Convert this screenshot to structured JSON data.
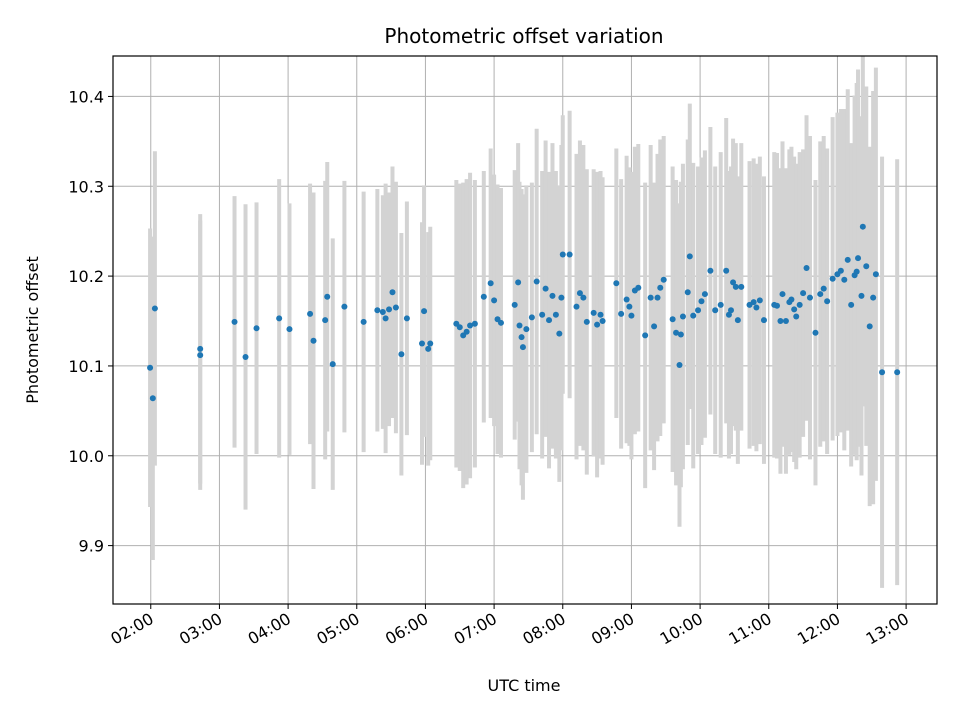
{
  "chart_data": {
    "type": "scatter",
    "title": "Photometric offset variation",
    "xlabel": "UTC time",
    "ylabel": "Photometric offset",
    "xlim_hours": [
      1.45,
      13.45
    ],
    "ylim": [
      9.835,
      10.445
    ],
    "grid": true,
    "x_ticks": [
      {
        "hour": 2,
        "label": "02:00"
      },
      {
        "hour": 3,
        "label": "03:00"
      },
      {
        "hour": 4,
        "label": "04:00"
      },
      {
        "hour": 5,
        "label": "05:00"
      },
      {
        "hour": 6,
        "label": "06:00"
      },
      {
        "hour": 7,
        "label": "07:00"
      },
      {
        "hour": 8,
        "label": "08:00"
      },
      {
        "hour": 9,
        "label": "09:00"
      },
      {
        "hour": 10,
        "label": "10:00"
      },
      {
        "hour": 11,
        "label": "11:00"
      },
      {
        "hour": 12,
        "label": "12:00"
      },
      {
        "hour": 13,
        "label": "13:00"
      }
    ],
    "y_ticks": [
      {
        "value": 9.9,
        "label": "9.9"
      },
      {
        "value": 10.0,
        "label": "10.0"
      },
      {
        "value": 10.1,
        "label": "10.1"
      },
      {
        "value": 10.2,
        "label": "10.2"
      },
      {
        "value": 10.3,
        "label": "10.3"
      },
      {
        "value": 10.4,
        "label": "10.4"
      }
    ],
    "colors": {
      "point": "#1f77b4",
      "errorbar": "#d3d3d3",
      "grid": "#b0b0b0"
    },
    "series": [
      {
        "name": "offset",
        "points": [
          [
            1.99,
            10.098,
            0.155
          ],
          [
            2.03,
            10.064,
            0.18
          ],
          [
            2.06,
            10.164,
            0.175
          ],
          [
            2.72,
            10.112,
            0.15
          ],
          [
            2.72,
            10.119,
            0.15
          ],
          [
            3.22,
            10.149,
            0.14
          ],
          [
            3.38,
            10.11,
            0.17
          ],
          [
            3.54,
            10.142,
            0.14
          ],
          [
            3.87,
            10.153,
            0.155
          ],
          [
            4.02,
            10.141,
            0.14
          ],
          [
            4.32,
            10.158,
            0.145
          ],
          [
            4.37,
            10.128,
            0.165
          ],
          [
            4.54,
            10.151,
            0.155
          ],
          [
            4.57,
            10.177,
            0.15
          ],
          [
            4.65,
            10.102,
            0.14
          ],
          [
            4.82,
            10.166,
            0.14
          ],
          [
            5.1,
            10.149,
            0.145
          ],
          [
            5.3,
            10.162,
            0.135
          ],
          [
            5.38,
            10.16,
            0.13
          ],
          [
            5.42,
            10.153,
            0.15
          ],
          [
            5.47,
            10.163,
            0.13
          ],
          [
            5.52,
            10.182,
            0.14
          ],
          [
            5.57,
            10.165,
            0.14
          ],
          [
            5.65,
            10.113,
            0.135
          ],
          [
            5.73,
            10.153,
            0.13
          ],
          [
            5.95,
            10.125,
            0.135
          ],
          [
            5.98,
            10.161,
            0.14
          ],
          [
            6.04,
            10.119,
            0.13
          ],
          [
            6.07,
            10.125,
            0.13
          ],
          [
            6.45,
            10.147,
            0.16
          ],
          [
            6.5,
            10.143,
            0.16
          ],
          [
            6.55,
            10.134,
            0.17
          ],
          [
            6.6,
            10.138,
            0.17
          ],
          [
            6.65,
            10.145,
            0.17
          ],
          [
            6.72,
            10.147,
            0.16
          ],
          [
            6.85,
            10.177,
            0.14
          ],
          [
            6.95,
            10.192,
            0.15
          ],
          [
            7.0,
            10.173,
            0.14
          ],
          [
            7.05,
            10.152,
            0.15
          ],
          [
            7.1,
            10.148,
            0.15
          ],
          [
            7.3,
            10.168,
            0.15
          ],
          [
            7.35,
            10.193,
            0.155
          ],
          [
            7.37,
            10.145,
            0.16
          ],
          [
            7.4,
            10.132,
            0.165
          ],
          [
            7.42,
            10.121,
            0.17
          ],
          [
            7.47,
            10.141,
            0.16
          ],
          [
            7.55,
            10.154,
            0.15
          ],
          [
            7.62,
            10.194,
            0.17
          ],
          [
            7.7,
            10.157,
            0.16
          ],
          [
            7.75,
            10.186,
            0.165
          ],
          [
            7.8,
            10.151,
            0.165
          ],
          [
            7.85,
            10.178,
            0.17
          ],
          [
            7.9,
            10.157,
            0.16
          ],
          [
            7.95,
            10.136,
            0.165
          ],
          [
            7.98,
            10.176,
            0.17
          ],
          [
            8.0,
            10.224,
            0.155
          ],
          [
            8.1,
            10.224,
            0.16
          ],
          [
            8.2,
            10.166,
            0.17
          ],
          [
            8.25,
            10.181,
            0.17
          ],
          [
            8.3,
            10.176,
            0.17
          ],
          [
            8.35,
            10.149,
            0.17
          ],
          [
            8.45,
            10.159,
            0.16
          ],
          [
            8.5,
            10.146,
            0.17
          ],
          [
            8.55,
            10.157,
            0.16
          ],
          [
            8.58,
            10.15,
            0.16
          ],
          [
            8.78,
            10.192,
            0.15
          ],
          [
            8.85,
            10.158,
            0.15
          ],
          [
            8.93,
            10.174,
            0.16
          ],
          [
            8.97,
            10.166,
            0.155
          ],
          [
            9.0,
            10.156,
            0.16
          ],
          [
            9.05,
            10.184,
            0.16
          ],
          [
            9.1,
            10.187,
            0.16
          ],
          [
            9.2,
            10.134,
            0.17
          ],
          [
            9.28,
            10.176,
            0.17
          ],
          [
            9.33,
            10.144,
            0.16
          ],
          [
            9.38,
            10.176,
            0.16
          ],
          [
            9.42,
            10.187,
            0.165
          ],
          [
            9.47,
            10.196,
            0.16
          ],
          [
            9.6,
            10.152,
            0.17
          ],
          [
            9.65,
            10.137,
            0.17
          ],
          [
            9.7,
            10.101,
            0.18
          ],
          [
            9.72,
            10.135,
            0.17
          ],
          [
            9.75,
            10.155,
            0.17
          ],
          [
            9.82,
            10.182,
            0.17
          ],
          [
            9.85,
            10.222,
            0.17
          ],
          [
            9.9,
            10.156,
            0.17
          ],
          [
            9.97,
            10.162,
            0.16
          ],
          [
            10.02,
            10.172,
            0.16
          ],
          [
            10.07,
            10.18,
            0.16
          ],
          [
            10.15,
            10.206,
            0.16
          ],
          [
            10.22,
            10.162,
            0.16
          ],
          [
            10.3,
            10.168,
            0.17
          ],
          [
            10.38,
            10.206,
            0.17
          ],
          [
            10.42,
            10.157,
            0.16
          ],
          [
            10.45,
            10.162,
            0.16
          ],
          [
            10.48,
            10.193,
            0.16
          ],
          [
            10.52,
            10.188,
            0.16
          ],
          [
            10.55,
            10.151,
            0.16
          ],
          [
            10.6,
            10.188,
            0.16
          ],
          [
            10.72,
            10.168,
            0.16
          ],
          [
            10.78,
            10.171,
            0.16
          ],
          [
            10.82,
            10.165,
            0.16
          ],
          [
            10.87,
            10.173,
            0.16
          ],
          [
            10.93,
            10.151,
            0.16
          ],
          [
            11.08,
            10.168,
            0.17
          ],
          [
            11.12,
            10.167,
            0.17
          ],
          [
            11.17,
            10.15,
            0.17
          ],
          [
            11.2,
            10.18,
            0.17
          ],
          [
            11.25,
            10.15,
            0.17
          ],
          [
            11.3,
            10.171,
            0.17
          ],
          [
            11.33,
            10.174,
            0.17
          ],
          [
            11.37,
            10.163,
            0.17
          ],
          [
            11.4,
            10.155,
            0.17
          ],
          [
            11.45,
            10.168,
            0.17
          ],
          [
            11.5,
            10.181,
            0.16
          ],
          [
            11.55,
            10.209,
            0.17
          ],
          [
            11.6,
            10.176,
            0.18
          ],
          [
            11.68,
            10.137,
            0.17
          ],
          [
            11.75,
            10.18,
            0.17
          ],
          [
            11.8,
            10.186,
            0.17
          ],
          [
            11.85,
            10.172,
            0.17
          ],
          [
            11.93,
            10.197,
            0.18
          ],
          [
            12.0,
            10.202,
            0.18
          ],
          [
            12.05,
            10.206,
            0.18
          ],
          [
            12.1,
            10.196,
            0.19
          ],
          [
            12.15,
            10.218,
            0.19
          ],
          [
            12.2,
            10.168,
            0.18
          ],
          [
            12.25,
            10.201,
            0.2
          ],
          [
            12.28,
            10.205,
            0.21
          ],
          [
            12.3,
            10.22,
            0.21
          ],
          [
            12.35,
            10.178,
            0.2
          ],
          [
            12.37,
            10.255,
            0.2
          ],
          [
            12.42,
            10.211,
            0.2
          ],
          [
            12.47,
            10.144,
            0.2
          ],
          [
            12.52,
            10.176,
            0.23
          ],
          [
            12.56,
            10.202,
            0.23
          ],
          [
            12.65,
            10.093,
            0.24
          ],
          [
            12.87,
            10.093,
            0.237
          ]
        ]
      }
    ]
  }
}
